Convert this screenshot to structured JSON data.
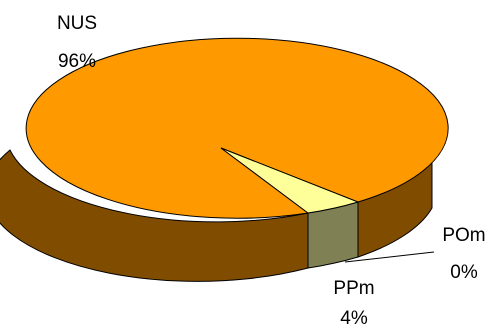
{
  "chart_data": {
    "type": "pie",
    "style": "3d",
    "title": "",
    "slices": [
      {
        "name": "NUS",
        "percent_label": "96%",
        "value": 96,
        "color": "#FF9900",
        "side_color": "#7F4C00"
      },
      {
        "name": "POm",
        "percent_label": "0%",
        "value": 0.4,
        "color": "#FFFF99",
        "side_color": "#7F7F4C"
      },
      {
        "name": "PPm",
        "percent_label": "4%",
        "value": 3.6,
        "color": "#808055",
        "side_color": "#808055"
      }
    ],
    "legend": "none"
  }
}
